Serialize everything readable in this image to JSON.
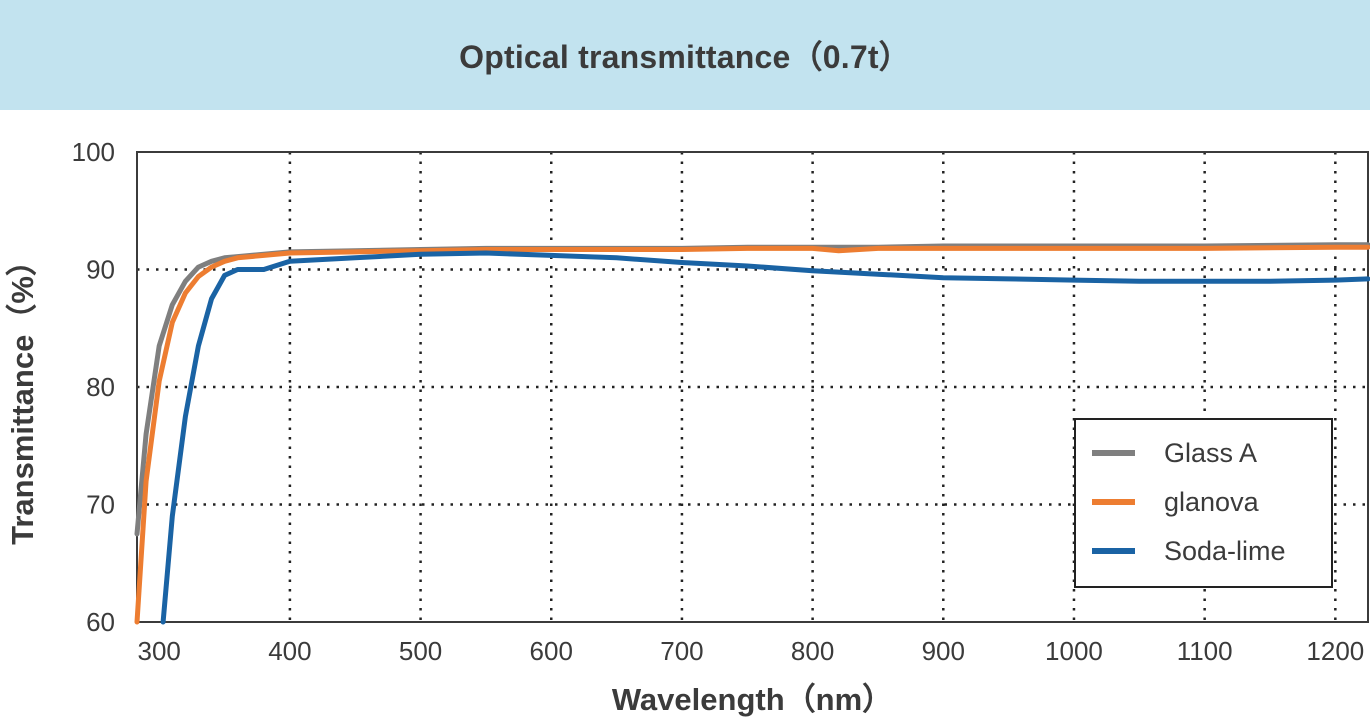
{
  "chart_data": {
    "type": "line",
    "title": "Optical transmittance（0.7t）",
    "xlabel": "Wavelength（nm）",
    "ylabel": "Transmittance（%）",
    "xlim": [
      283,
      1225
    ],
    "ylim": [
      60,
      100
    ],
    "x_ticks": [
      300,
      400,
      500,
      600,
      700,
      800,
      900,
      1000,
      1100,
      1200
    ],
    "y_ticks": [
      60,
      70,
      80,
      90,
      100
    ],
    "grid": true,
    "grid_style": "dotted",
    "legend_position": "bottom-right",
    "series": [
      {
        "name": "Glass A",
        "color": "#7f7f7f",
        "points": [
          [
            283,
            67.5
          ],
          [
            290,
            76
          ],
          [
            300,
            83.5
          ],
          [
            310,
            87
          ],
          [
            320,
            89
          ],
          [
            330,
            90.2
          ],
          [
            340,
            90.7
          ],
          [
            350,
            91
          ],
          [
            360,
            91.1
          ],
          [
            380,
            91.3
          ],
          [
            400,
            91.5
          ],
          [
            450,
            91.6
          ],
          [
            500,
            91.7
          ],
          [
            550,
            91.8
          ],
          [
            600,
            91.8
          ],
          [
            650,
            91.8
          ],
          [
            700,
            91.8
          ],
          [
            750,
            91.9
          ],
          [
            800,
            91.9
          ],
          [
            850,
            91.9
          ],
          [
            900,
            92
          ],
          [
            1000,
            92
          ],
          [
            1100,
            92
          ],
          [
            1200,
            92.1
          ],
          [
            1225,
            92.1
          ]
        ]
      },
      {
        "name": "glanova",
        "color": "#ed7d31",
        "points": [
          [
            283,
            60
          ],
          [
            290,
            72
          ],
          [
            300,
            80.5
          ],
          [
            310,
            85.5
          ],
          [
            320,
            88
          ],
          [
            330,
            89.4
          ],
          [
            340,
            90.2
          ],
          [
            350,
            90.7
          ],
          [
            360,
            91
          ],
          [
            380,
            91.2
          ],
          [
            400,
            91.4
          ],
          [
            450,
            91.5
          ],
          [
            500,
            91.6
          ],
          [
            550,
            91.7
          ],
          [
            600,
            91.7
          ],
          [
            650,
            91.7
          ],
          [
            700,
            91.7
          ],
          [
            750,
            91.8
          ],
          [
            800,
            91.8
          ],
          [
            820,
            91.6
          ],
          [
            850,
            91.8
          ],
          [
            900,
            91.8
          ],
          [
            1000,
            91.8
          ],
          [
            1100,
            91.8
          ],
          [
            1200,
            91.9
          ],
          [
            1225,
            91.9
          ]
        ]
      },
      {
        "name": "Soda-lime",
        "color": "#1a63a4",
        "points": [
          [
            303,
            60
          ],
          [
            310,
            69
          ],
          [
            320,
            77.5
          ],
          [
            330,
            83.5
          ],
          [
            340,
            87.5
          ],
          [
            350,
            89.5
          ],
          [
            360,
            90
          ],
          [
            380,
            90
          ],
          [
            400,
            90.7
          ],
          [
            450,
            91
          ],
          [
            500,
            91.3
          ],
          [
            550,
            91.4
          ],
          [
            600,
            91.2
          ],
          [
            650,
            91
          ],
          [
            700,
            90.6
          ],
          [
            750,
            90.3
          ],
          [
            800,
            89.9
          ],
          [
            850,
            89.6
          ],
          [
            900,
            89.3
          ],
          [
            950,
            89.2
          ],
          [
            1000,
            89.1
          ],
          [
            1050,
            89
          ],
          [
            1100,
            89
          ],
          [
            1150,
            89
          ],
          [
            1200,
            89.1
          ],
          [
            1225,
            89.2
          ]
        ]
      }
    ]
  }
}
